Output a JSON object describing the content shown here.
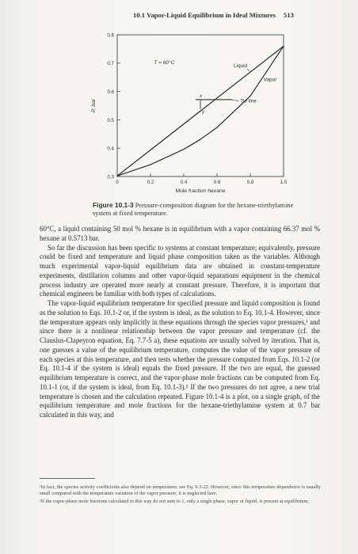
{
  "header": {
    "text": "10.1 Vapor-Liquid Equilibrium in Ideal Mixtures",
    "page": "513"
  },
  "chart_data": {
    "type": "line",
    "title": "",
    "xlabel": "Mole fraction hexane",
    "ylabel": "P, bar",
    "xlim": [
      0,
      1.0
    ],
    "ylim": [
      0.3,
      0.8
    ],
    "xticks": [
      "0",
      "0.2",
      "0.4",
      "0.6",
      "0.8",
      "1.0"
    ],
    "yticks": [
      "0.3",
      "0.4",
      "0.5",
      "0.6",
      "0.7",
      "0.8"
    ],
    "annotations": {
      "temperature": "T = 60°C",
      "liquid": "Liquid",
      "vapor": "Vapor",
      "tie_line": "Tie line",
      "x_marker": "x",
      "y_marker": "y"
    },
    "series": [
      {
        "name": "Liquid",
        "x": [
          0,
          1
        ],
        "y": [
          0.302,
          0.76
        ]
      },
      {
        "name": "Vapor",
        "x": [
          0,
          0.2,
          0.4,
          0.5,
          0.6,
          0.8,
          1.0
        ],
        "y": [
          0.302,
          0.342,
          0.396,
          0.431,
          0.473,
          0.584,
          0.76
        ]
      }
    ],
    "tie_line": {
      "x_liquid": 0.5,
      "y_vapor": 0.6637,
      "p": 0.5713
    }
  },
  "caption": {
    "label": "Figure 10.1-3",
    "text": " Pressure-composition diagram for the hexane-triethylamine system at fixed temperature."
  },
  "paragraphs": [
    "60°C, a liquid containing 50 mol % hexane is in equilibrium with a vapor containing 66.37 mol % hexane at 0.5713 bar.",
    "So far the discussion has been specific to systems at constant temperature; equivalently, pressure could be fixed and temperature and liquid phase composition taken as the variables. Although much experimental vapor-liquid equilibrium data are obtained in constant-temperature experiments, distillation columns and other vapor-liquid separations equipment in the chemical process industry are operated more nearly at constant pressure. Therefore, it is important that chemical engineers be familiar with both types of calculations.",
    "The vapor-liquid equilibrium temperature for specified pressure and liquid composition is found as the solution to Eqs. 10.1-2 or, if the system is ideal, as the solution to Eq. 10.1-4. However, since the temperature appears only implicitly in these equations through the species vapor pressures,¹ and since there is a nonlinear relationship between the vapor pressure and temperature (cf. the Clausius-Clapeyron equation, Eq. 7.7-5 a), these equations are usually solved by iteration. That is, one guesses a value of the equilibrium temperature, computes the value of the vapor pressure of each species at this temperature, and then tests whether the pressure computed from Eqs. 10.1-2 (or Eq. 10.1-4 if the system is ideal) equals the fixed pressure. If the two are equal, the guessed equilibrium temperature is correct, and the vapor-phase mole fractions can be computed from Eq. 10.1-1 (or, if the system is ideal, from Eq. 10.1-3).² If the two pressures do not agree, a new trial temperature is chosen and the calculation repeated. Figure 10.1-4 is a plot, on a single graph, of the equilibrium temperature and mole fractions for the hexane-triethylamine system at 0.7 bar calculated in this way, and"
  ],
  "footnotes": [
    "¹In fact, the species activity coefficients also depend on temperature; see Eq. 9.3-22. However, since this temperature dependence is usually small compared with the temperature variation of the vapor pressure, it is neglected here.",
    "²If the vapor-phase mole fractions calculated in this way do not sum to 1, only a single phase, vapor or liquid, is present at equilibrium."
  ]
}
